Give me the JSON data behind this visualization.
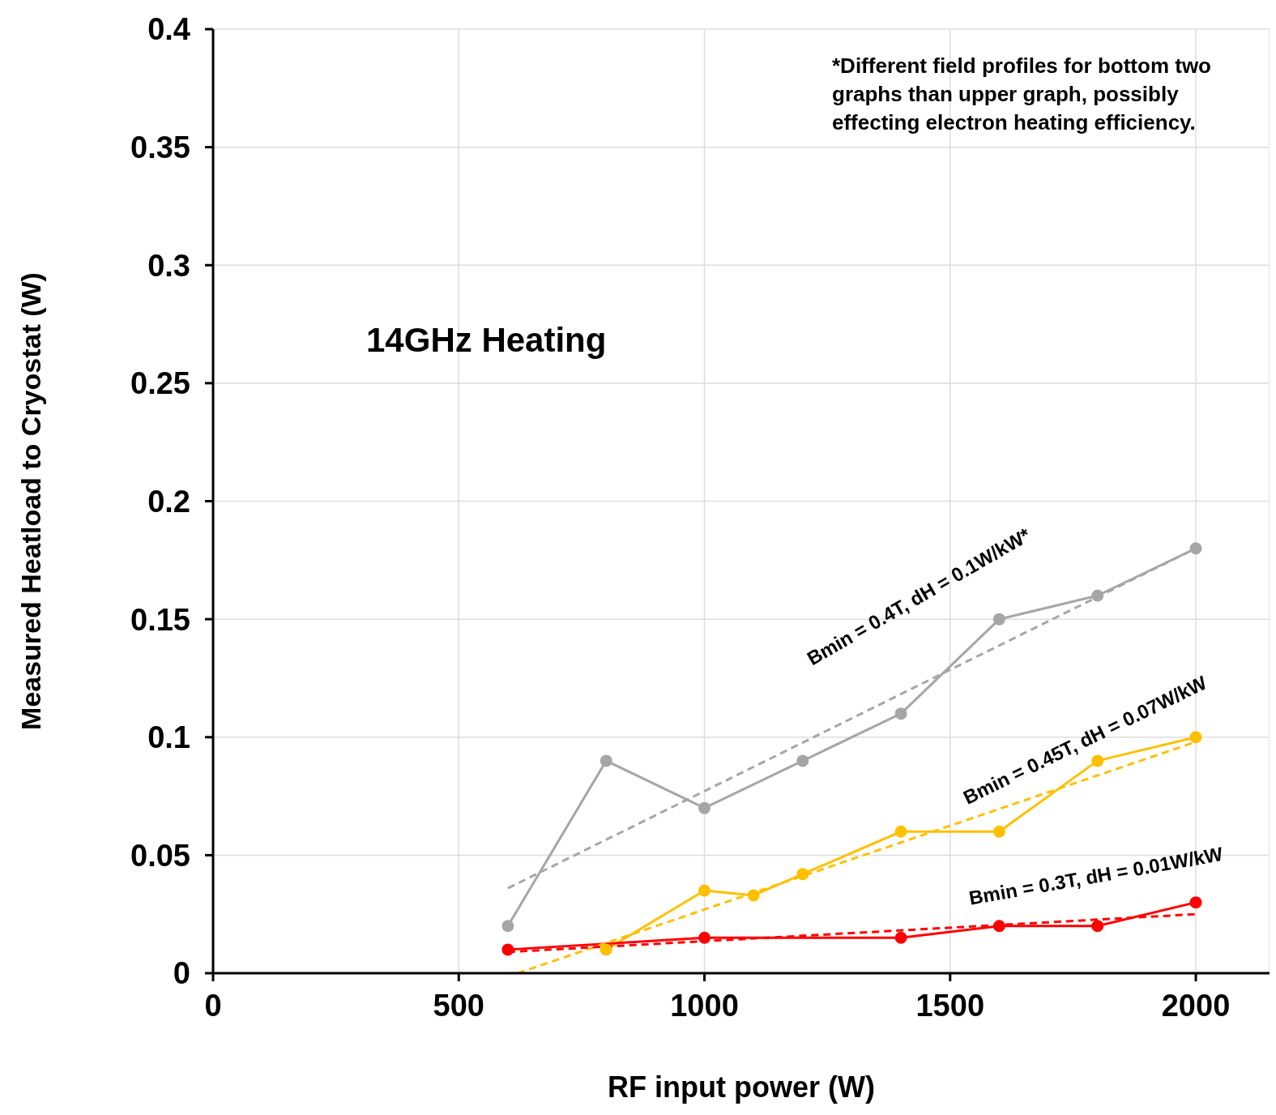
{
  "chart_data": {
    "type": "line",
    "title": "14GHz Heating",
    "xlabel": "RF input power (W)",
    "ylabel": "Measured Heatload to Cryostat (W)",
    "xlim": [
      0,
      2150
    ],
    "xticks": [
      0,
      500,
      1000,
      1500,
      2000
    ],
    "ylim": [
      0,
      0.4
    ],
    "yticks": [
      0,
      0.05,
      0.1,
      0.15,
      0.2,
      0.25,
      0.3,
      0.35,
      0.4
    ],
    "grid": true,
    "series": [
      {
        "color": "#a6a6a6",
        "x": [
          600,
          800,
          1000,
          1200,
          1400,
          1600,
          1800,
          2000
        ],
        "values": [
          0.02,
          0.09,
          0.07,
          0.09,
          0.11,
          0.15,
          0.16,
          0.18
        ],
        "marker": "circle",
        "line_style": "solid"
      },
      {
        "color": "#ffc000",
        "x": [
          800,
          1000,
          1100,
          1200,
          1400,
          1600,
          1800,
          2000
        ],
        "values": [
          0.01,
          0.035,
          0.033,
          0.042,
          0.06,
          0.06,
          0.09,
          0.1
        ],
        "marker": "circle",
        "line_style": "solid"
      },
      {
        "color": "#ff0000",
        "x": [
          600,
          1000,
          1400,
          1600,
          1800,
          2000
        ],
        "values": [
          0.01,
          0.015,
          0.015,
          0.02,
          0.02,
          0.03
        ],
        "marker": "circle",
        "line_style": "solid"
      },
      {
        "color": "#a6a6a6",
        "x": [
          600,
          2000
        ],
        "values": [
          0.036,
          0.18
        ],
        "marker": "none",
        "line_style": "dashed"
      },
      {
        "color": "#ffc000",
        "x": [
          620,
          2000
        ],
        "values": [
          0,
          0.098
        ],
        "marker": "none",
        "line_style": "dashed"
      },
      {
        "color": "#ff0000",
        "x": [
          600,
          2000
        ],
        "values": [
          0.009,
          0.025
        ],
        "marker": "none",
        "line_style": "dashed"
      }
    ],
    "annotations": [
      "Bmin = 0.4T, dH = 0.1W/kW*",
      "Bmin = 0.45T, dH = 0.07W/kW",
      "Bmin = 0.3T, dH = 0.01W/kW",
      "*Different field profiles for bottom two graphs than upper graph, possibly effecting electron heating efficiency."
    ]
  }
}
